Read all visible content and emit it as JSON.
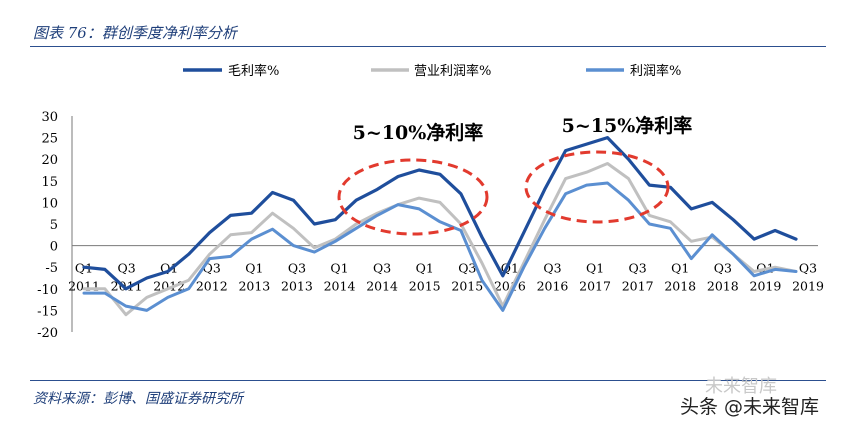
{
  "title": "图表 76：群创季度净利率分析",
  "source": "资料来源：彭博、国盛证券研究所",
  "watermark": "头条 @未来智库",
  "watermark_bg": "未来智库",
  "annotations": [
    {
      "text": "5~10%净利率"
    },
    {
      "text": "5~15%净利率"
    }
  ],
  "colors": {
    "gross": "#1f4e9c",
    "operating": "#c0c0c0",
    "net": "#5b8fd1",
    "ellipse": "#e23a2e",
    "rule": "#2c4f8f"
  },
  "chart_data": {
    "type": "line",
    "ylim": [
      -20,
      30
    ],
    "yticks": [
      30,
      25,
      20,
      15,
      10,
      5,
      0,
      -5,
      -10,
      -15,
      -20
    ],
    "x_top": [
      "Q1",
      "Q3",
      "Q1",
      "Q3",
      "Q1",
      "Q3",
      "Q1",
      "Q3",
      "Q1",
      "Q3",
      "Q1",
      "Q3",
      "Q1",
      "Q3",
      "Q1",
      "Q3",
      "Q1",
      "Q3"
    ],
    "x_bottom": [
      "2011",
      "2011",
      "2012",
      "2012",
      "2013",
      "2013",
      "2014",
      "2014",
      "2015",
      "2015",
      "2016",
      "2016",
      "2017",
      "2017",
      "2018",
      "2018",
      "2019",
      "2019"
    ],
    "series": [
      {
        "name": "毛利率%",
        "values": [
          -5,
          -5.5,
          -10,
          -7.5,
          -6,
          -2,
          3,
          7,
          7.5,
          12.3,
          10.5,
          5,
          6,
          10.5,
          13,
          16,
          17.5,
          16.5,
          12,
          2,
          -7,
          3,
          13,
          22,
          23.5,
          25,
          20,
          14,
          13.5,
          8.5,
          10,
          6,
          1.5,
          3.5,
          1.5
        ]
      },
      {
        "name": "营业利润率%",
        "values": [
          -10,
          -10,
          -16,
          -12,
          -10,
          -8,
          -2,
          2.5,
          3,
          7.5,
          4,
          -0.5,
          1.5,
          5,
          7.5,
          9.5,
          11,
          10,
          5,
          -4,
          -14,
          -4,
          6,
          15.5,
          17,
          19,
          15.5,
          7,
          5.5,
          1,
          2,
          -2,
          -6,
          -5,
          -6
        ]
      },
      {
        "name": "利润率%",
        "values": [
          -11,
          -11,
          -14,
          -15,
          -12,
          -10,
          -3,
          -2.5,
          1.5,
          3.8,
          0,
          -1.5,
          1,
          4,
          7,
          9.5,
          8.5,
          5.5,
          3.5,
          -8,
          -15,
          -5,
          4,
          12,
          14,
          14.5,
          10.5,
          5,
          4,
          -3,
          2.5,
          -2,
          -7,
          -5.5,
          -6
        ]
      }
    ]
  }
}
